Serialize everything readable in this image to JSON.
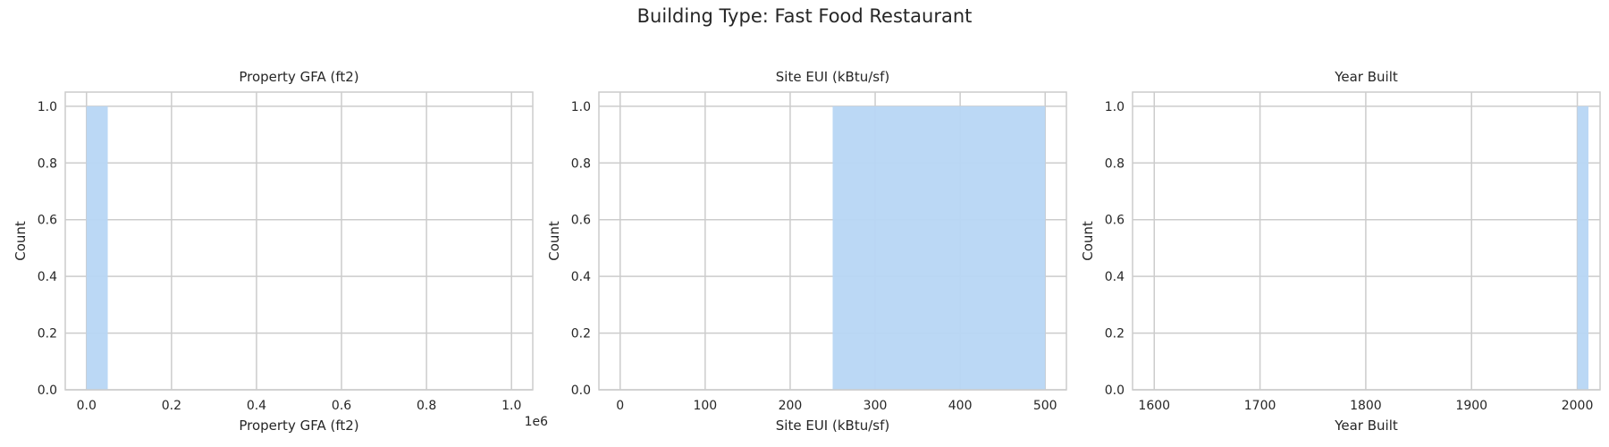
{
  "figure": {
    "title": "Building Type: Fast Food Restaurant"
  },
  "colors": {
    "bar": "#b7d6f4",
    "grid": "#cccccc",
    "frame": "#cccccc",
    "background": "#ffffff"
  },
  "chart_data": [
    {
      "type": "bar",
      "title": "Property GFA (ft2)",
      "xlabel": "Property GFA (ft2)",
      "ylabel": "Count",
      "x_offset_label": "1e6",
      "xlim": [
        -0.05,
        1.05
      ],
      "ylim": [
        0,
        1.05
      ],
      "xticks": [
        0,
        0.2,
        0.4,
        0.6,
        0.8,
        1.0
      ],
      "xtick_labels": [
        "0.0",
        "0.2",
        "0.4",
        "0.6",
        "0.8",
        "1.0"
      ],
      "yticks": [
        0,
        0.2,
        0.4,
        0.6,
        0.8,
        1.0
      ],
      "ytick_labels": [
        "0.0",
        "0.2",
        "0.4",
        "0.6",
        "0.8",
        "1.0"
      ],
      "bins": [
        {
          "x0": 0.0,
          "x1": 0.05,
          "count": 1
        }
      ],
      "grid": true
    },
    {
      "type": "bar",
      "title": "Site EUI (kBtu/sf)",
      "xlabel": "Site EUI (kBtu/sf)",
      "ylabel": "Count",
      "x_offset_label": "",
      "xlim": [
        -25,
        525
      ],
      "ylim": [
        0,
        1.05
      ],
      "xticks": [
        0,
        100,
        200,
        300,
        400,
        500
      ],
      "xtick_labels": [
        "0",
        "100",
        "200",
        "300",
        "400",
        "500"
      ],
      "yticks": [
        0,
        0.2,
        0.4,
        0.6,
        0.8,
        1.0
      ],
      "ytick_labels": [
        "0.0",
        "0.2",
        "0.4",
        "0.6",
        "0.8",
        "1.0"
      ],
      "bins": [
        {
          "x0": 250,
          "x1": 500,
          "count": 1
        }
      ],
      "grid": true
    },
    {
      "type": "bar",
      "title": "Year Built",
      "xlabel": "Year Built",
      "ylabel": "Count",
      "x_offset_label": "",
      "xlim": [
        1579.5,
        2021.5
      ],
      "ylim": [
        0,
        1.05
      ],
      "xticks": [
        1600,
        1700,
        1800,
        1900,
        2000
      ],
      "xtick_labels": [
        "1600",
        "1700",
        "1800",
        "1900",
        "2000"
      ],
      "yticks": [
        0,
        0.2,
        0.4,
        0.6,
        0.8,
        1.0
      ],
      "ytick_labels": [
        "0.0",
        "0.2",
        "0.4",
        "0.6",
        "0.8",
        "1.0"
      ],
      "bins": [
        {
          "x0": 2000,
          "x1": 2010.5,
          "count": 1
        }
      ],
      "grid": true
    }
  ]
}
